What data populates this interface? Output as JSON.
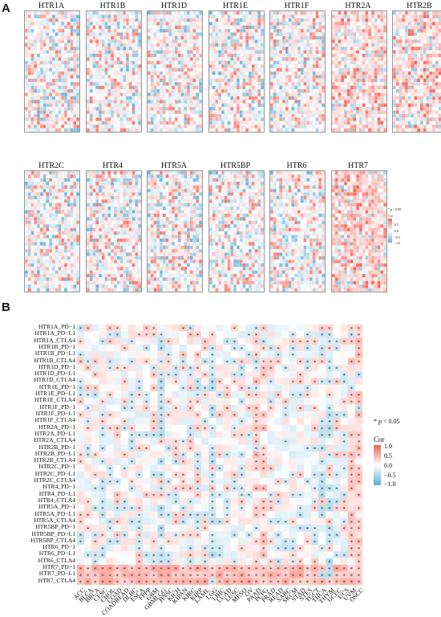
{
  "panel_a": {
    "letter": "A",
    "row1_titles": [
      "HTR1A",
      "HTR1B",
      "HTR1D",
      "HTR1E",
      "HTR1F",
      "HTR2A",
      "HTR2B"
    ],
    "row2_titles": [
      "HTR2C",
      "HTR4",
      "HTR5A",
      "HTR5BP",
      "HTR6",
      "HTR7"
    ],
    "legend": {
      "pnote": "* p < 0.05",
      "title": "Cor",
      "ticks": [
        "1.0",
        "0.5",
        "0.0",
        "−0.5",
        "−1.0"
      ]
    }
  },
  "panel_b": {
    "letter": "B",
    "pnote": "* p < 0.05",
    "legend": {
      "title": "Cor",
      "ticks": [
        "1.0",
        "0.5",
        "0.0",
        "−0.5",
        "−1.0"
      ]
    },
    "colors": {
      "pos": "#e8665a",
      "neg": "#5aaed6",
      "zero": "#ffffff"
    }
  },
  "chart_data": {
    "type": "heatmap",
    "rows": [
      "HTR1A_PD−1",
      "HTR1A_PD−L1",
      "HTR1A_CTLA4",
      "HTR1B_PD−1",
      "HTR1B_PD−L1",
      "HTR1B_CTLA4",
      "HTR1D_PD−1",
      "HTR1D_PD−L1",
      "HTR1D_CTLA4",
      "HTR1E_PD−1",
      "HTR1E_PD−L1",
      "HTR1E_CTLA4",
      "HTR1F_PD−1",
      "HTR1F_PD−L1",
      "HTR1F_CTLA4",
      "HTR2A_PD−1",
      "HTR2A_PD−L1",
      "HTR2A_CTLA4",
      "HTR2B_PD−1",
      "HTR2B_PD−L1",
      "HTR2B_CTLA4",
      "HTR2C_PD−1",
      "HTR2C_PD−L1",
      "HTR2C_CTLA4",
      "HTR4_PD−1",
      "HTR4_PD−L1",
      "HTR4_CTLA4",
      "HTR5A_PD−1",
      "HTR5A_PD−L1",
      "HTR5A_CTLA4",
      "HTR5BP_PD−1",
      "HTR5BP_PD−L1",
      "HTR5BP_CTLA4",
      "HTR6_PD−1",
      "HTR6_PD−L1",
      "HTR6_CTLA4",
      "HTR7_PD−1",
      "HTR7_PD−L1",
      "HTR7_CTLA4"
    ],
    "columns": [
      "ACC",
      "BLCA",
      "BRCA",
      "CESC",
      "CHOL",
      "COAD",
      "COADREAD",
      "DLBC",
      "ESCA",
      "FPPP",
      "GBM",
      "GBMLGG",
      "HNSC",
      "KICH",
      "KIPAN",
      "KIRC",
      "KIRP",
      "LAML",
      "LGG",
      "LIHC",
      "LUAD",
      "LUSC",
      "MESO",
      "OV",
      "PAAD",
      "PCPG",
      "PRAD",
      "READ",
      "SARC",
      "SKCM",
      "STAD",
      "STES",
      "TGCT",
      "THCA",
      "THYM",
      "UCEC",
      "UCS",
      "UVM",
      "OSCC"
    ],
    "value_range": [
      -1.0,
      1.0
    ],
    "significance_marker": "*"
  }
}
